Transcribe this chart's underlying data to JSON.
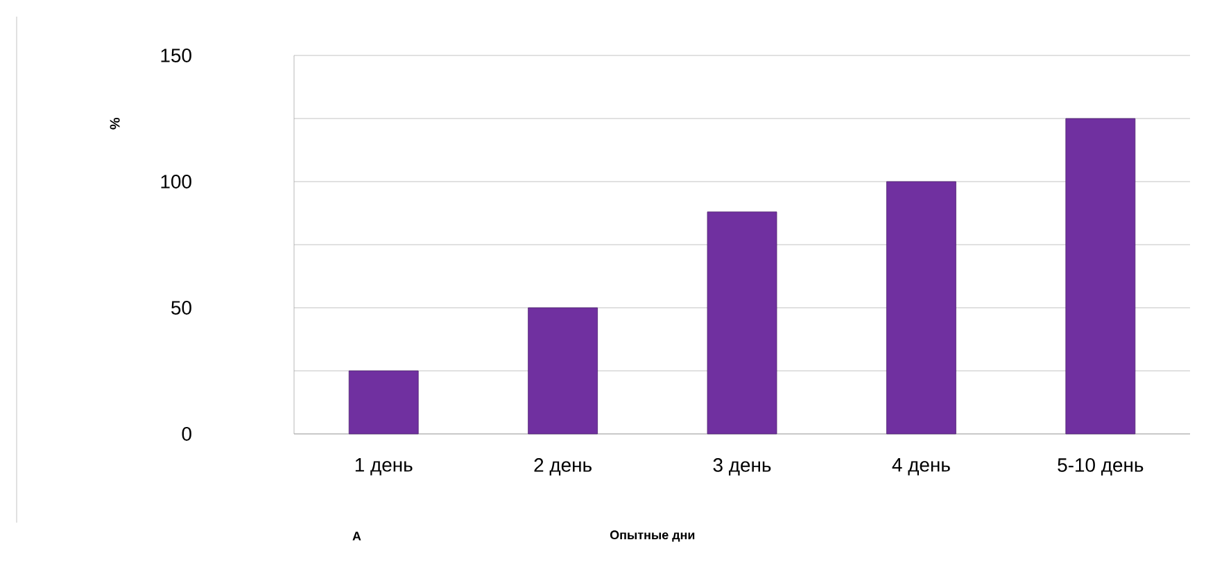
{
  "chart_data": {
    "type": "bar",
    "categories": [
      "1 день",
      "2 день",
      "3  день",
      "4 день",
      "5-10 день"
    ],
    "values": [
      25,
      50,
      88,
      100,
      125
    ],
    "color": "#7030a0",
    "ylim": [
      0,
      150
    ],
    "yticks": [
      0,
      {
        "value": 25,
        "label": null
      },
      50,
      {
        "value": 75,
        "label": null
      },
      100,
      {
        "value": 125,
        "label": null
      },
      150
    ],
    "grid": "y",
    "xlabel": "Опытные дни",
    "ylabel": "%",
    "annotations": [
      "А"
    ]
  }
}
